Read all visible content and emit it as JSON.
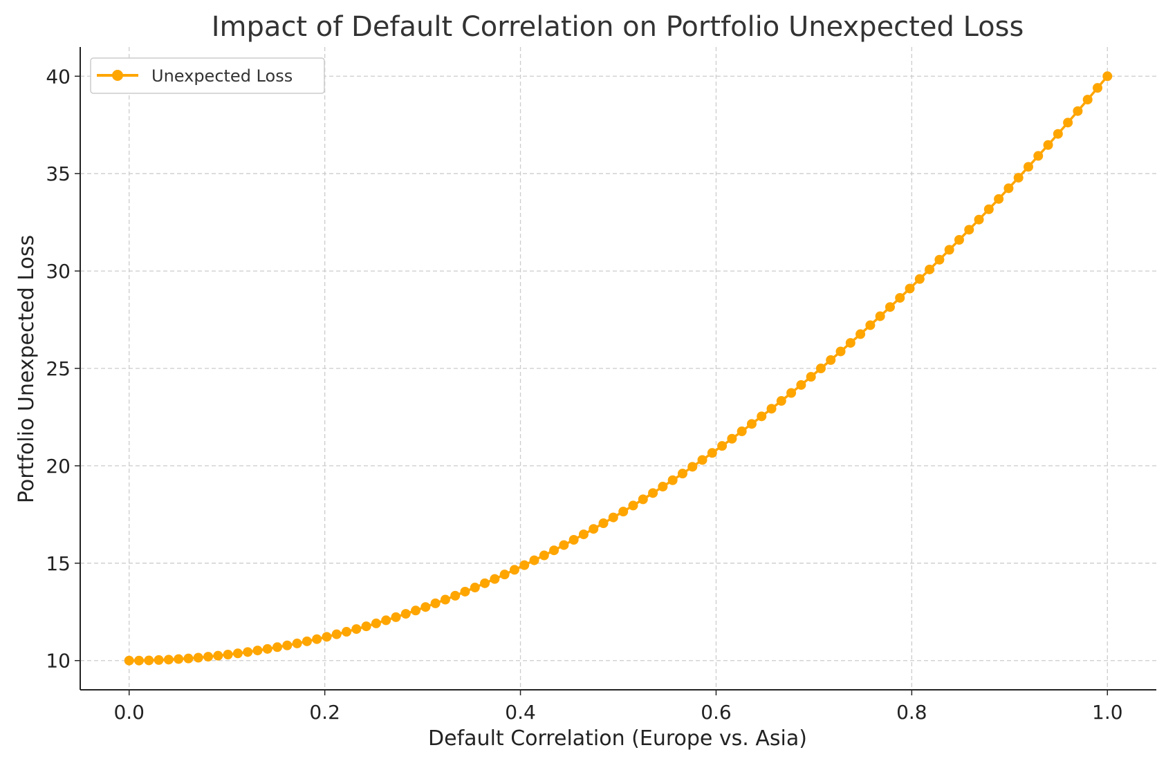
{
  "chart_data": {
    "type": "line",
    "title": "Impact of Default Correlation on Portfolio Unexpected Loss",
    "xlabel": "Default Correlation (Europe vs. Asia)",
    "ylabel": "Portfolio Unexpected Loss",
    "xlim": [
      -0.05,
      1.05
    ],
    "ylim": [
      8.5,
      41.5
    ],
    "xticks": [
      0.0,
      0.2,
      0.4,
      0.6,
      0.8,
      1.0
    ],
    "xtick_labels": [
      "0.0",
      "0.2",
      "0.4",
      "0.6",
      "0.8",
      "1.0"
    ],
    "yticks": [
      10,
      15,
      20,
      25,
      30,
      35,
      40
    ],
    "ytick_labels": [
      "10",
      "15",
      "20",
      "25",
      "30",
      "35",
      "40"
    ],
    "grid": true,
    "legend_position": "top-left",
    "series": [
      {
        "name": "Unexpected Loss",
        "color": "#FFA500",
        "marker": "circle",
        "x": [
          0.0,
          0.0101,
          0.0202,
          0.0303,
          0.0404,
          0.0505,
          0.0606,
          0.0707,
          0.0808,
          0.0909,
          0.101,
          0.1111,
          0.1212,
          0.1313,
          0.1414,
          0.1515,
          0.1616,
          0.1717,
          0.1818,
          0.1919,
          0.202,
          0.2121,
          0.2222,
          0.2323,
          0.2424,
          0.2525,
          0.2626,
          0.2727,
          0.2828,
          0.2929,
          0.303,
          0.3131,
          0.3232,
          0.3333,
          0.3434,
          0.3535,
          0.3636,
          0.3737,
          0.3838,
          0.3939,
          0.404,
          0.4141,
          0.4242,
          0.4343,
          0.4444,
          0.4545,
          0.4646,
          0.4747,
          0.4848,
          0.4949,
          0.5051,
          0.5152,
          0.5253,
          0.5354,
          0.5455,
          0.5556,
          0.5657,
          0.5758,
          0.5859,
          0.596,
          0.6061,
          0.6162,
          0.6263,
          0.6364,
          0.6465,
          0.6566,
          0.6667,
          0.6768,
          0.6869,
          0.697,
          0.7071,
          0.7172,
          0.7273,
          0.7374,
          0.7475,
          0.7576,
          0.7677,
          0.7778,
          0.7879,
          0.798,
          0.8081,
          0.8182,
          0.8283,
          0.8384,
          0.8485,
          0.8586,
          0.8687,
          0.8788,
          0.8889,
          0.899,
          0.9091,
          0.9192,
          0.9293,
          0.9394,
          0.9495,
          0.9596,
          0.9697,
          0.9798,
          0.9899,
          1.0
        ],
        "y": [
          10.0,
          10.0,
          10.01,
          10.03,
          10.05,
          10.08,
          10.11,
          10.15,
          10.2,
          10.25,
          10.31,
          10.37,
          10.44,
          10.52,
          10.6,
          10.69,
          10.78,
          10.88,
          10.99,
          11.1,
          11.22,
          11.35,
          11.48,
          11.62,
          11.76,
          11.91,
          12.07,
          12.23,
          12.4,
          12.57,
          12.75,
          12.94,
          13.13,
          13.33,
          13.54,
          13.75,
          13.97,
          14.19,
          14.42,
          14.66,
          14.9,
          15.15,
          15.4,
          15.66,
          15.93,
          16.2,
          16.48,
          16.76,
          17.05,
          17.35,
          17.65,
          17.96,
          18.28,
          18.6,
          18.93,
          19.26,
          19.6,
          19.95,
          20.3,
          20.66,
          21.02,
          21.39,
          21.77,
          22.15,
          22.54,
          22.93,
          23.33,
          23.74,
          24.15,
          24.57,
          25.0,
          25.43,
          25.87,
          26.31,
          26.76,
          27.22,
          27.68,
          28.15,
          28.62,
          29.1,
          29.59,
          30.08,
          30.58,
          31.09,
          31.6,
          32.12,
          32.64,
          33.17,
          33.7,
          34.25,
          34.79,
          35.35,
          35.91,
          36.47,
          37.04,
          37.62,
          38.21,
          38.8,
          39.4,
          40.0
        ]
      }
    ]
  }
}
